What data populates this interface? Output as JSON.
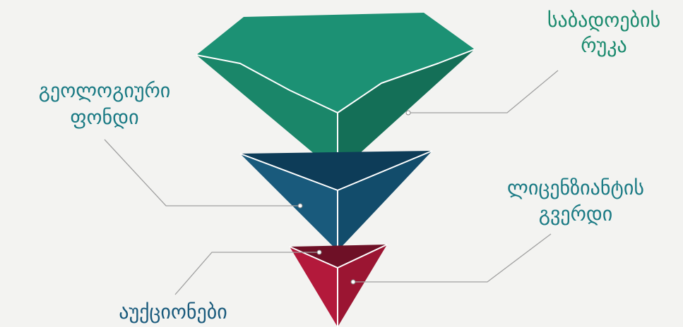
{
  "labels": [
    {
      "lines": [
        "საბადოების",
        "რუკა"
      ]
    },
    {
      "lines": [
        "გეოლოგიური",
        "ფონდი"
      ]
    },
    {
      "lines": [
        "ლიცენზიანტის",
        "გვერდი"
      ]
    },
    {
      "lines": [
        "აუქციონები"
      ]
    }
  ]
}
